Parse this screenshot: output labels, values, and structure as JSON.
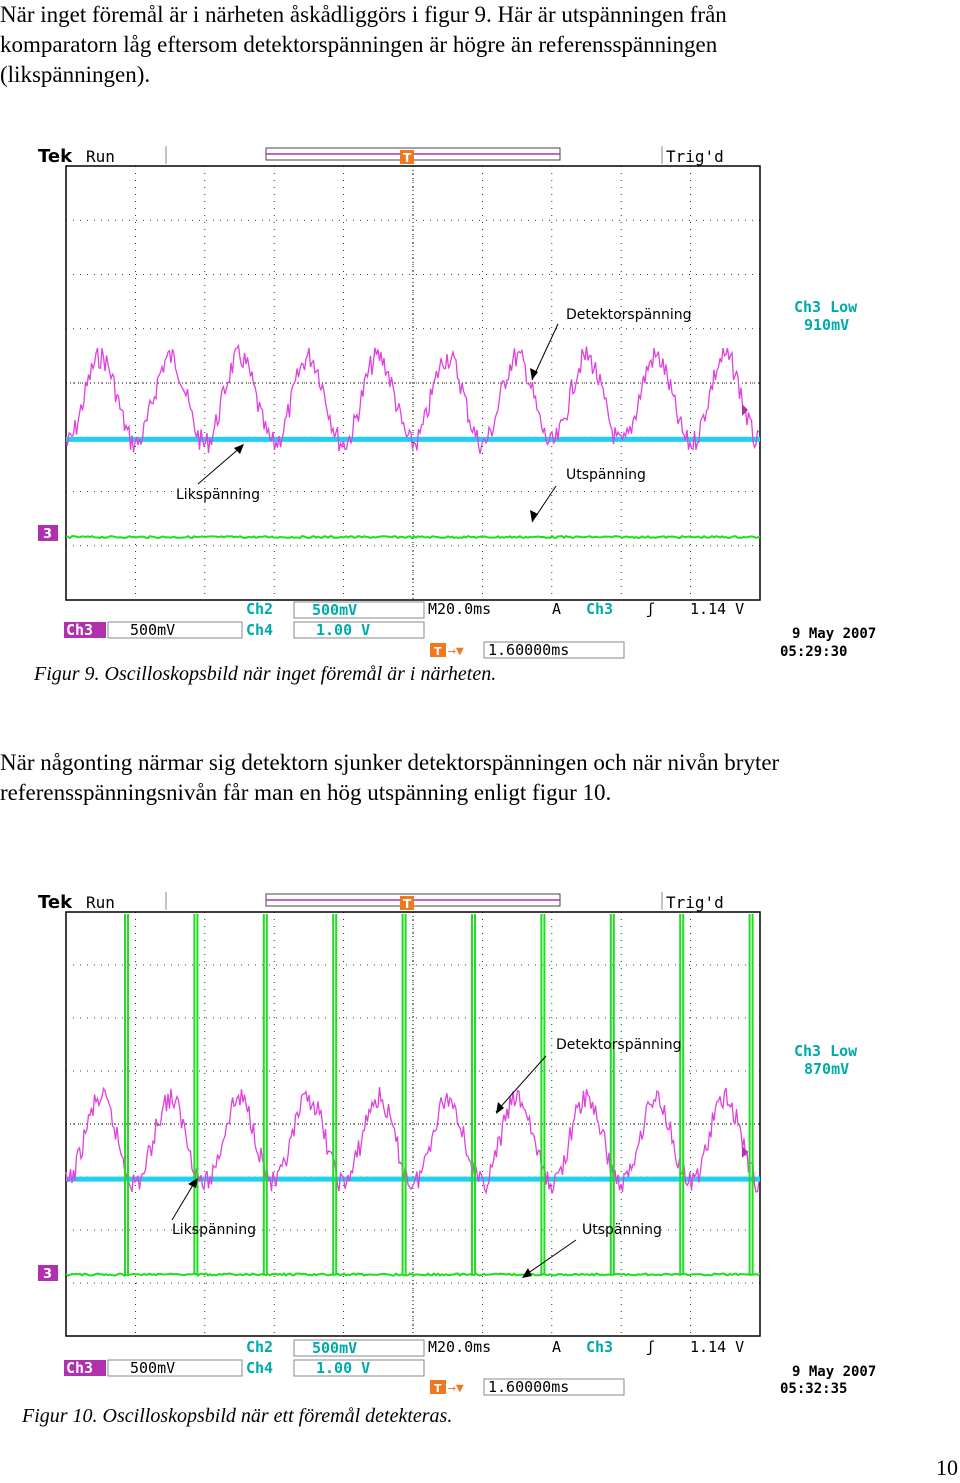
{
  "para1": [
    "När inget föremål är i närheten åskådliggörs i figur 9. Här är utspänningen från",
    "komparatorn låg eftersom detektorspänningen är högre än referensspänningen",
    "(likspänningen)."
  ],
  "para2": [
    "När någonting närmar sig detektorn sjunker detektorspänningen och när nivån bryter",
    "referensspänningsnivån får man en hög utspänning enligt figur 10."
  ],
  "page_number": "10",
  "colors": {
    "detector": "#e040e0",
    "reference": "#20d0f0",
    "output": "#20dd20",
    "scope_text": "#00aaaa",
    "ch3_badge": "#b030b0",
    "trigger_orange": "#f07820"
  },
  "figures": [
    {
      "caption": "Figur 9. Oscilloskopsbild när inget föremål är i närheten.",
      "header_brand": "Tek",
      "header_state": "Run",
      "header_trig": "Trig'd",
      "trigger_marker": "T",
      "ch3_low_label": "Ch3 Low",
      "ch3_low_value": "910mV",
      "label_detector": "Detektorspänning",
      "label_reference": "Likspänning",
      "label_output": "Utspänning",
      "ch3_marker": "3",
      "readouts": {
        "ch2": "Ch2",
        "ch2_val": "500mV",
        "timebase": "M20.0ms",
        "trig_mode": "A",
        "trig_src": "Ch3",
        "trig_level": "1.14 V",
        "ch3": "Ch3",
        "ch3_val": "500mV",
        "ch4": "Ch4",
        "ch4_val": "1.00 V",
        "delay": "1.60000ms",
        "date": "9 May 2007",
        "time": "05:29:30"
      },
      "signals": {
        "output_high": false,
        "pulses": 0
      }
    },
    {
      "caption": "Figur 10. Oscilloskopsbild när ett föremål detekteras.",
      "header_brand": "Tek",
      "header_state": "Run",
      "header_trig": "Trig'd",
      "trigger_marker": "T",
      "ch3_low_label": "Ch3 Low",
      "ch3_low_value": "870mV",
      "label_detector": "Detektorspänning",
      "label_reference": "Likspänning",
      "label_output": "Utspänning",
      "ch3_marker": "3",
      "readouts": {
        "ch2": "Ch2",
        "ch2_val": "500mV",
        "timebase": "M20.0ms",
        "trig_mode": "A",
        "trig_src": "Ch3",
        "trig_level": "1.14 V",
        "ch3": "Ch3",
        "ch3_val": "500mV",
        "ch4": "Ch4",
        "ch4_val": "1.00 V",
        "delay": "1.60000ms",
        "date": "9 May 2007",
        "time": "05:32:35"
      },
      "signals": {
        "output_high": true,
        "pulses": 10
      }
    }
  ]
}
